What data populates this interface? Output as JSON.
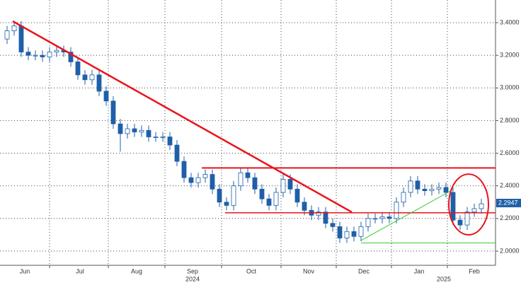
{
  "chart_data": {
    "type": "candlestick",
    "open": [
      3.3,
      3.35,
      3.38,
      3.22,
      3.2,
      3.2,
      3.19,
      3.22,
      3.23,
      3.22,
      3.16,
      3.08,
      3.05,
      3.08,
      2.98,
      2.92,
      2.78,
      2.72,
      2.75,
      2.73,
      2.74,
      2.7,
      2.7,
      2.7,
      2.65,
      2.55,
      2.45,
      2.42,
      2.45,
      2.47,
      2.38,
      2.3,
      2.28,
      2.4,
      2.48,
      2.45,
      2.38,
      2.32,
      2.28,
      2.36,
      2.44,
      2.38,
      2.3,
      2.25,
      2.22,
      2.24,
      2.17,
      2.15,
      2.08,
      2.12,
      2.09,
      2.15,
      2.2,
      2.2,
      2.21,
      2.2,
      2.3,
      2.36,
      2.43,
      2.38,
      2.37,
      2.38,
      2.39,
      2.36,
      2.19,
      2.16,
      2.24,
      2.26
    ],
    "high": [
      3.38,
      3.41,
      3.41,
      3.25,
      3.23,
      3.23,
      3.25,
      3.26,
      3.26,
      3.25,
      3.19,
      3.11,
      3.11,
      3.11,
      3.01,
      2.95,
      2.81,
      2.78,
      2.78,
      2.77,
      2.77,
      2.73,
      2.73,
      2.73,
      2.68,
      2.58,
      2.48,
      2.48,
      2.5,
      2.5,
      2.41,
      2.33,
      2.43,
      2.51,
      2.51,
      2.48,
      2.41,
      2.35,
      2.39,
      2.47,
      2.47,
      2.41,
      2.33,
      2.28,
      2.27,
      2.27,
      2.2,
      2.18,
      2.15,
      2.15,
      2.18,
      2.23,
      2.23,
      2.24,
      2.24,
      2.33,
      2.39,
      2.46,
      2.46,
      2.41,
      2.41,
      2.42,
      2.42,
      2.39,
      2.22,
      2.27,
      2.29,
      2.32
    ],
    "low": [
      3.27,
      3.32,
      3.19,
      3.17,
      3.17,
      3.16,
      3.16,
      3.19,
      3.19,
      3.13,
      3.05,
      3.02,
      3.02,
      2.95,
      2.89,
      2.75,
      2.61,
      2.69,
      2.7,
      2.7,
      2.67,
      2.67,
      2.67,
      2.62,
      2.52,
      2.42,
      2.39,
      2.39,
      2.42,
      2.35,
      2.27,
      2.25,
      2.25,
      2.37,
      2.42,
      2.35,
      2.29,
      2.25,
      2.25,
      2.33,
      2.35,
      2.27,
      2.22,
      2.19,
      2.19,
      2.14,
      2.12,
      2.05,
      2.05,
      2.06,
      2.06,
      2.12,
      2.17,
      2.17,
      2.17,
      2.17,
      2.27,
      2.33,
      2.35,
      2.34,
      2.34,
      2.35,
      2.33,
      2.16,
      2.13,
      2.13,
      2.21,
      2.23
    ],
    "close": [
      3.35,
      3.38,
      3.22,
      3.2,
      3.2,
      3.19,
      3.22,
      3.23,
      3.22,
      3.16,
      3.08,
      3.05,
      3.08,
      2.98,
      2.92,
      2.78,
      2.72,
      2.75,
      2.73,
      2.74,
      2.7,
      2.7,
      2.7,
      2.65,
      2.55,
      2.45,
      2.42,
      2.45,
      2.47,
      2.38,
      2.3,
      2.28,
      2.4,
      2.48,
      2.45,
      2.38,
      2.32,
      2.28,
      2.36,
      2.44,
      2.38,
      2.3,
      2.25,
      2.22,
      2.24,
      2.17,
      2.15,
      2.08,
      2.12,
      2.09,
      2.15,
      2.2,
      2.2,
      2.21,
      2.2,
      2.3,
      2.36,
      2.43,
      2.38,
      2.37,
      2.38,
      2.39,
      2.36,
      2.19,
      2.16,
      2.24,
      2.26,
      2.29
    ],
    "up_color": "#ffffff",
    "down_color": "#1f5fa8",
    "edge_color": "#1f5fa8",
    "xlim": [
      -1,
      69
    ],
    "xticks": [
      {
        "value": 2.5,
        "label": "Jun"
      },
      {
        "value": 10.3,
        "label": "Jul"
      },
      {
        "value": 18.3,
        "label": "Aug"
      },
      {
        "value": 26.2,
        "label": "Sep"
      },
      {
        "value": 34.5,
        "label": "Oct"
      },
      {
        "value": 42.6,
        "label": "Nov"
      },
      {
        "value": 50.4,
        "label": "Dec"
      },
      {
        "value": 58.2,
        "label": "Jan"
      },
      {
        "value": 66,
        "label": "Feb"
      }
    ],
    "year_labels": [
      {
        "value": 26.2,
        "label": "2024"
      },
      {
        "value": 61.7,
        "label": "2025"
      }
    ],
    "xgrid": [
      6,
      14.3,
      22.3,
      30.3,
      38.7,
      46.5,
      54.3,
      62.2
    ],
    "ylim": [
      1.913,
      3.539
    ],
    "yticks": [
      {
        "value": 2.0,
        "label": "2.0000"
      },
      {
        "value": 2.2,
        "label": "2.2000"
      },
      {
        "value": 2.4,
        "label": "2.4000"
      },
      {
        "value": 2.6,
        "label": "2.6000"
      },
      {
        "value": 2.8,
        "label": "2.8000"
      },
      {
        "value": 3.0,
        "label": "3.0000"
      },
      {
        "value": 3.2,
        "label": "3.2000"
      },
      {
        "value": 3.4,
        "label": "3.4000"
      }
    ],
    "grid": true,
    "last_price": 2.2947,
    "last_price_color": "#1f5fa8",
    "overlays": [
      {
        "x": [
          0.8,
          48.7
        ],
        "y": [
          3.409,
          2.239
        ],
        "color": "#e8141c",
        "width": 2.5
      },
      {
        "x": [
          27.5,
          69
        ],
        "y": [
          2.51,
          2.51
        ],
        "color": "#e8141c",
        "width": 2
      },
      {
        "x": [
          30.8,
          69
        ],
        "y": [
          2.235,
          2.235
        ],
        "color": "#e8141c",
        "width": 1.5
      },
      {
        "x": [
          50,
          63
        ],
        "y": [
          2.065,
          2.377
        ],
        "color": "#33cc33",
        "width": 1
      },
      {
        "x": [
          50,
          69
        ],
        "y": [
          2.05,
          2.05
        ],
        "color": "#33cc33",
        "width": 1
      }
    ],
    "ellipse": {
      "cx": 65.2,
      "cy": 2.286,
      "rx": 2.8,
      "ry": 0.186,
      "color": "#e8141c"
    }
  }
}
